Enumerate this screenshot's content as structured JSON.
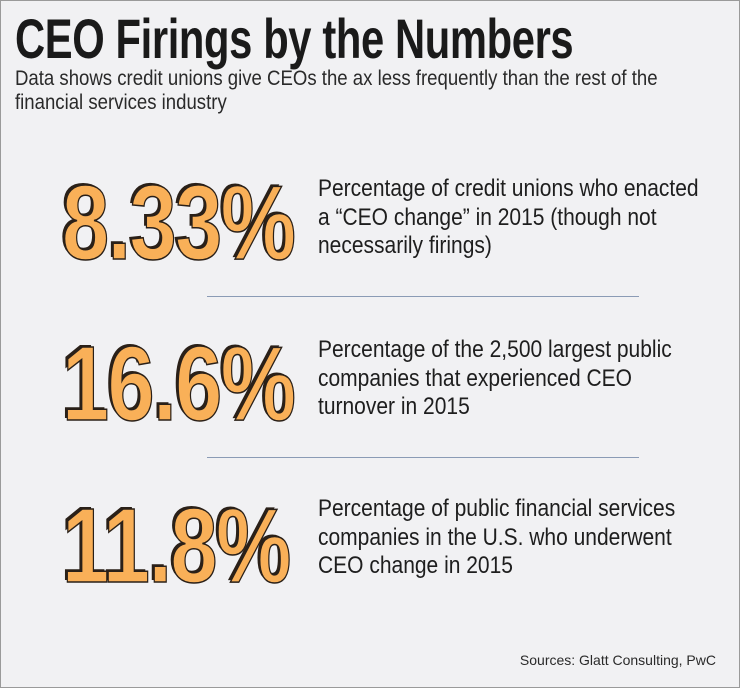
{
  "header": {
    "title": "CEO Firings by the Numbers",
    "subtitle": "Data shows credit unions give CEOs the ax less frequently than the rest of the financial services industry"
  },
  "stats": [
    {
      "value": "8.33%",
      "description": "Percentage of credit unions who enacted a “CEO change” in 2015 (though not necessarily firings)"
    },
    {
      "value": "16.6%",
      "description": "Percentage of the 2,500 largest public companies that experienced CEO turnover in 2015"
    },
    {
      "value": "11.8%",
      "description": "Percentage of public financial services companies in the U.S. who underwent CEO change in 2015"
    }
  ],
  "sources": "Sources: Glatt Consulting, PwC",
  "colors": {
    "accent": "#f9b058",
    "divider": "#8b9bb5",
    "background": "#f1f1f3"
  }
}
